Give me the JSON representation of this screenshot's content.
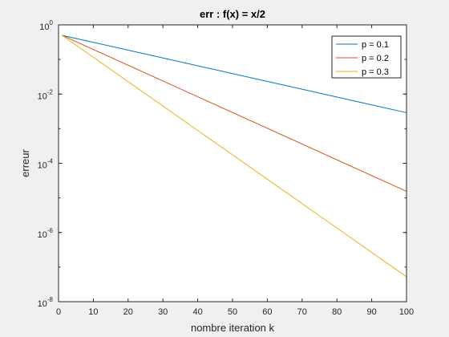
{
  "chart_data": {
    "type": "line",
    "title": "err : f(x) = x/2",
    "xlabel": "nombre iteration k",
    "ylabel": "erreur",
    "xlim": [
      0,
      100
    ],
    "ylim": [
      1e-08,
      1
    ],
    "yscale": "log",
    "grid": false,
    "legend_position": "top-right",
    "x": [
      1,
      100
    ],
    "x_ticks": [
      0,
      10,
      20,
      30,
      40,
      50,
      60,
      70,
      80,
      90,
      100
    ],
    "x_tick_labels": [
      "0",
      "10",
      "20",
      "30",
      "40",
      "50",
      "60",
      "70",
      "80",
      "90",
      "100"
    ],
    "y_ticks": [
      1e-08,
      1e-06,
      0.0001,
      0.01,
      1
    ],
    "y_tick_labels": [
      {
        "base": "10",
        "exp": "-8"
      },
      {
        "base": "10",
        "exp": "-6"
      },
      {
        "base": "10",
        "exp": "-4"
      },
      {
        "base": "10",
        "exp": "-2"
      },
      {
        "base": "10",
        "exp": "0"
      }
    ],
    "series": [
      {
        "name": "p = 0.1",
        "color": "#0072bd",
        "values": [
          0.5,
          0.0029
        ]
      },
      {
        "name": "p = 0.2",
        "color": "#d95319",
        "values": [
          0.5,
          1.55e-05
        ]
      },
      {
        "name": "p = 0.3",
        "color": "#edb120",
        "values": [
          0.5,
          5.25e-08
        ]
      }
    ]
  }
}
